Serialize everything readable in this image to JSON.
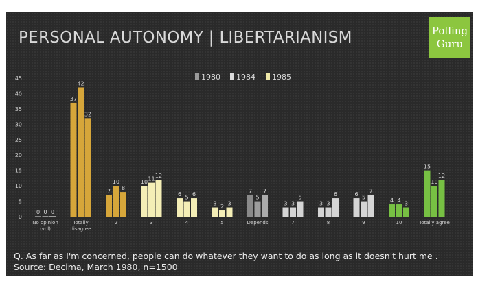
{
  "slide": {
    "title": "PERSONAL AUTONOMY | LIBERTARIANISM",
    "logo_line1": "Polling",
    "logo_line2": "Guru",
    "question": "Q. As far as I'm concerned, people can do whatever they want to do as long as it doesn't hurt me .",
    "source": "Source: Decima, March 1980, n=1500"
  },
  "chart_data": {
    "type": "bar",
    "title": "",
    "xlabel": "",
    "ylabel": "",
    "ylim": [
      0,
      45
    ],
    "yticks": [
      0,
      5,
      10,
      15,
      20,
      25,
      30,
      35,
      40,
      45
    ],
    "grid": false,
    "legend_position": "top-center",
    "categories": [
      [
        "No opinion",
        "(vol)"
      ],
      [
        "Totally",
        "disagree"
      ],
      [
        "2"
      ],
      [
        "3"
      ],
      [
        "4"
      ],
      [
        "5"
      ],
      [
        "Depends"
      ],
      [
        "7"
      ],
      [
        "8"
      ],
      [
        "9"
      ],
      [
        "10"
      ],
      [
        "Totally agree"
      ]
    ],
    "series": [
      {
        "name": "1980",
        "values": [
          0,
          37,
          7,
          10,
          6,
          3,
          7,
          3,
          3,
          6,
          4,
          15
        ]
      },
      {
        "name": "1984",
        "values": [
          0,
          42,
          10,
          11,
          5,
          2,
          5,
          3,
          3,
          5,
          4,
          10
        ]
      },
      {
        "name": "1985",
        "values": [
          0,
          32,
          8,
          12,
          6,
          3,
          7,
          5,
          6,
          7,
          3,
          12
        ]
      }
    ],
    "bar_colors": [
      [
        "#9a9a9a",
        "#aaaaaa",
        "#bbbbbb"
      ],
      [
        "#d6a63a",
        "#d6a63a",
        "#d6a63a"
      ],
      [
        "#d6a63a",
        "#d6a63a",
        "#d6a63a"
      ],
      [
        "#f4eeb6",
        "#f4eeb6",
        "#f4eeb6"
      ],
      [
        "#f4eeb6",
        "#f4eeb6",
        "#f4eeb6"
      ],
      [
        "#f4eeb6",
        "#f4eeb6",
        "#f4eeb6"
      ],
      [
        "#8a8a8a",
        "#9c9c9c",
        "#ababab"
      ],
      [
        "#d5d5d5",
        "#d5d5d5",
        "#d5d5d5"
      ],
      [
        "#d5d5d5",
        "#d5d5d5",
        "#d5d5d5"
      ],
      [
        "#d5d5d5",
        "#d5d5d5",
        "#d5d5d5"
      ],
      [
        "#77c043",
        "#77c043",
        "#77c043"
      ],
      [
        "#77c043",
        "#77c043",
        "#77c043"
      ]
    ],
    "legend_colors": [
      "#9a9a9a",
      "#d9d9d9",
      "#efe8a8"
    ]
  }
}
